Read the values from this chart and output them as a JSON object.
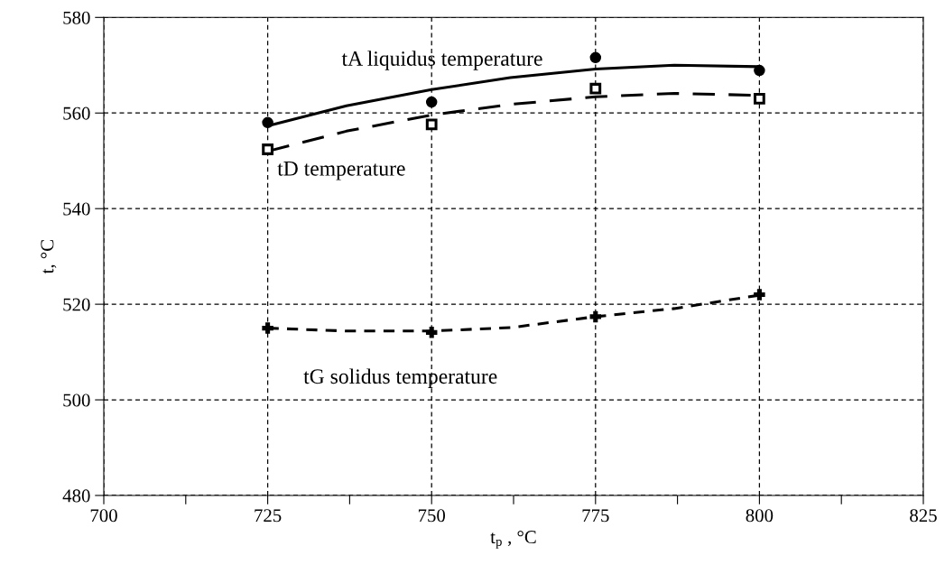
{
  "chart_data": {
    "type": "scatter",
    "xlabel": "t$_{p}$ , °C",
    "ylabel": "t, °C",
    "xlim": [
      700,
      825
    ],
    "xticks": [
      700,
      {
        "value": 712.5,
        "label": null
      },
      725,
      {
        "value": 737.5,
        "label": null
      },
      750,
      {
        "value": 762.5,
        "label": null
      },
      775,
      {
        "value": 787.5,
        "label": null
      },
      800,
      {
        "value": 812.5,
        "label": null
      },
      825
    ],
    "ylim": [
      480,
      580
    ],
    "yticks": [
      480,
      500,
      520,
      540,
      560,
      580
    ],
    "grid": true,
    "series": [
      {
        "marker": "circle",
        "color": "#000000",
        "x": [
          725,
          750,
          775,
          800
        ],
        "values": [
          558.0,
          562.3,
          571.6,
          568.9
        ]
      },
      {
        "type": "line",
        "line_style": "solid",
        "marker": "none",
        "color": "#000000",
        "x": [
          725,
          737,
          750,
          762,
          775,
          787,
          800
        ],
        "values": [
          557.3,
          561.5,
          564.9,
          567.4,
          569.2,
          570.0,
          569.7
        ]
      },
      {
        "marker": "square",
        "color": "#000000",
        "x": [
          725,
          750,
          775,
          800
        ],
        "values": [
          552.4,
          557.6,
          565.1,
          563.0
        ]
      },
      {
        "type": "line",
        "line_style": "dashed",
        "marker": "none",
        "color": "#000000",
        "x": [
          725,
          737,
          750,
          762,
          775,
          787,
          800
        ],
        "values": [
          552.0,
          556.2,
          559.6,
          561.8,
          563.4,
          564.1,
          563.7
        ]
      },
      {
        "marker": "cross",
        "color": "#000000",
        "x": [
          725,
          750,
          775,
          800
        ],
        "values": [
          515.0,
          514.1,
          517.4,
          522.0
        ]
      },
      {
        "type": "line",
        "line_style": "dotted",
        "marker": "none",
        "color": "#000000",
        "x": [
          725,
          737,
          750,
          762,
          775,
          787,
          800
        ],
        "values": [
          515.0,
          514.4,
          514.4,
          515.1,
          517.4,
          519.1,
          521.9
        ]
      }
    ],
    "annotations": [
      "tA liquidus temperature",
      "tD temperature",
      "tG solidus temperature"
    ]
  }
}
